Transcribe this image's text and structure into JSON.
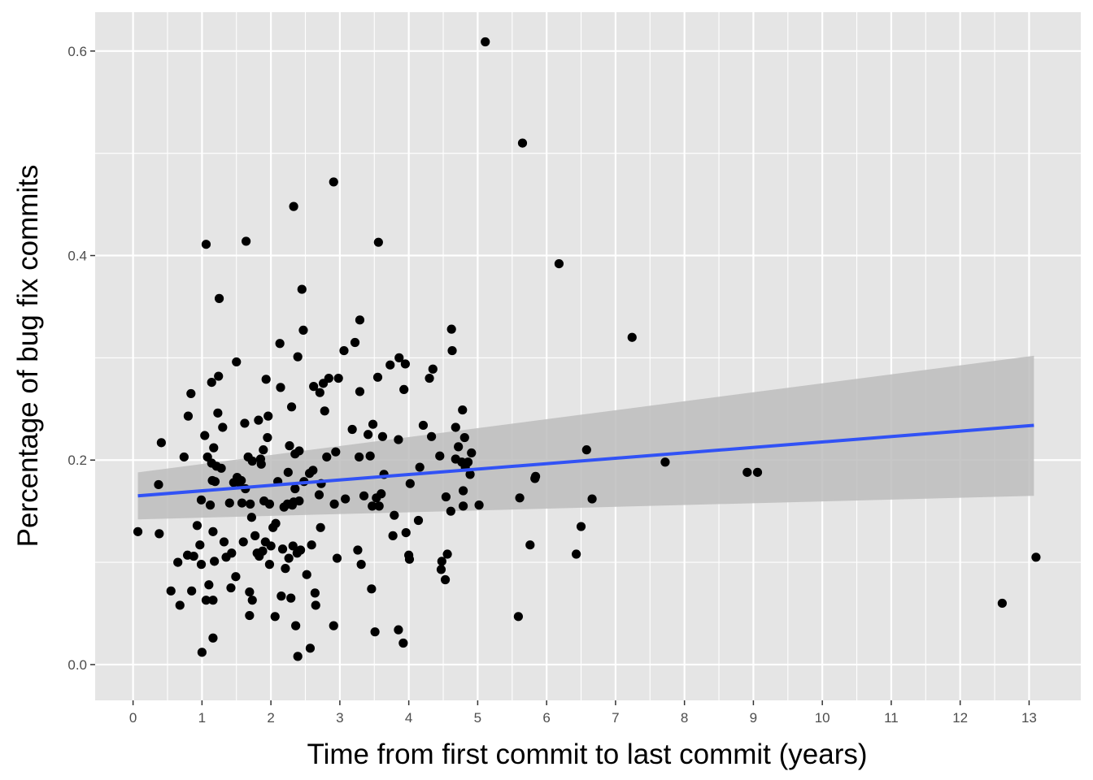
{
  "chart_data": {
    "type": "scatter",
    "title": "",
    "xlabel": "Time from first commit to last commit (years)",
    "ylabel": "Percentage of bug fix commits",
    "xlim": [
      -0.55,
      13.75
    ],
    "ylim": [
      -0.035,
      0.638
    ],
    "x_ticks": [
      0,
      1,
      2,
      3,
      4,
      5,
      6,
      7,
      8,
      9,
      10,
      11,
      12,
      13
    ],
    "x_tick_labels": [
      "0",
      "1",
      "2",
      "3",
      "4",
      "5",
      "6",
      "7",
      "8",
      "9",
      "10",
      "11",
      "12",
      "13"
    ],
    "y_ticks": [
      0.0,
      0.2,
      0.4,
      0.6
    ],
    "y_tick_labels": [
      "0.0",
      "0.2",
      "0.4",
      "0.6"
    ],
    "grid": true,
    "legend": "none",
    "colors": {
      "panel": "#e5e5e5",
      "grid": "#ffffff",
      "point": "#000000",
      "fit_line": "#3152f5",
      "confidence_band": "#bdbdbd",
      "tick_text": "#4d4d4d"
    },
    "fit": {
      "x_start": 0.07,
      "y_start": 0.165,
      "x_end": 13.07,
      "y_end": 0.234,
      "ci_start": [
        0.142,
        0.188
      ],
      "ci_end": [
        0.165,
        0.302
      ]
    },
    "points": [
      [
        0.07,
        0.13
      ],
      [
        0.37,
        0.176
      ],
      [
        0.38,
        0.128
      ],
      [
        0.41,
        0.217
      ],
      [
        0.55,
        0.072
      ],
      [
        0.65,
        0.1
      ],
      [
        0.68,
        0.058
      ],
      [
        0.74,
        0.203
      ],
      [
        0.79,
        0.107
      ],
      [
        0.8,
        0.243
      ],
      [
        0.84,
        0.265
      ],
      [
        0.85,
        0.072
      ],
      [
        0.88,
        0.106
      ],
      [
        0.93,
        0.136
      ],
      [
        0.97,
        0.117
      ],
      [
        0.99,
        0.098
      ],
      [
        0.99,
        0.161
      ],
      [
        1.0,
        0.012
      ],
      [
        1.04,
        0.224
      ],
      [
        1.06,
        0.411
      ],
      [
        1.06,
        0.063
      ],
      [
        1.08,
        0.203
      ],
      [
        1.1,
        0.078
      ],
      [
        1.12,
        0.156
      ],
      [
        1.14,
        0.276
      ],
      [
        1.14,
        0.197
      ],
      [
        1.15,
        0.18
      ],
      [
        1.16,
        0.063
      ],
      [
        1.16,
        0.13
      ],
      [
        1.16,
        0.026
      ],
      [
        1.17,
        0.212
      ],
      [
        1.18,
        0.101
      ],
      [
        1.19,
        0.179
      ],
      [
        1.21,
        0.194
      ],
      [
        1.23,
        0.246
      ],
      [
        1.24,
        0.282
      ],
      [
        1.25,
        0.358
      ],
      [
        1.28,
        0.192
      ],
      [
        1.3,
        0.232
      ],
      [
        1.32,
        0.12
      ],
      [
        1.35,
        0.105
      ],
      [
        1.4,
        0.158
      ],
      [
        1.42,
        0.075
      ],
      [
        1.43,
        0.109
      ],
      [
        1.46,
        0.178
      ],
      [
        1.49,
        0.086
      ],
      [
        1.5,
        0.296
      ],
      [
        1.51,
        0.183
      ],
      [
        1.54,
        0.178
      ],
      [
        1.57,
        0.18
      ],
      [
        1.58,
        0.158
      ],
      [
        1.6,
        0.12
      ],
      [
        1.62,
        0.236
      ],
      [
        1.63,
        0.172
      ],
      [
        1.64,
        0.414
      ],
      [
        1.67,
        0.203
      ],
      [
        1.69,
        0.071
      ],
      [
        1.69,
        0.048
      ],
      [
        1.7,
        0.157
      ],
      [
        1.72,
        0.144
      ],
      [
        1.73,
        0.063
      ],
      [
        1.73,
        0.199
      ],
      [
        1.77,
        0.126
      ],
      [
        1.8,
        0.109
      ],
      [
        1.82,
        0.239
      ],
      [
        1.83,
        0.106
      ],
      [
        1.85,
        0.201
      ],
      [
        1.86,
        0.196
      ],
      [
        1.88,
        0.111
      ],
      [
        1.89,
        0.21
      ],
      [
        1.9,
        0.16
      ],
      [
        1.92,
        0.12
      ],
      [
        1.93,
        0.279
      ],
      [
        1.95,
        0.222
      ],
      [
        1.96,
        0.243
      ],
      [
        1.98,
        0.157
      ],
      [
        1.98,
        0.098
      ],
      [
        2.0,
        0.116
      ],
      [
        2.03,
        0.134
      ],
      [
        2.06,
        0.047
      ],
      [
        2.07,
        0.138
      ],
      [
        2.1,
        0.179
      ],
      [
        2.13,
        0.314
      ],
      [
        2.14,
        0.271
      ],
      [
        2.15,
        0.067
      ],
      [
        2.17,
        0.113
      ],
      [
        2.19,
        0.154
      ],
      [
        2.21,
        0.094
      ],
      [
        2.24,
        0.157
      ],
      [
        2.25,
        0.188
      ],
      [
        2.26,
        0.104
      ],
      [
        2.27,
        0.214
      ],
      [
        2.29,
        0.065
      ],
      [
        2.3,
        0.252
      ],
      [
        2.31,
        0.156
      ],
      [
        2.32,
        0.116
      ],
      [
        2.33,
        0.448
      ],
      [
        2.33,
        0.159
      ],
      [
        2.35,
        0.206
      ],
      [
        2.35,
        0.172
      ],
      [
        2.36,
        0.038
      ],
      [
        2.38,
        0.109
      ],
      [
        2.39,
        0.301
      ],
      [
        2.39,
        0.008
      ],
      [
        2.41,
        0.209
      ],
      [
        2.41,
        0.16
      ],
      [
        2.43,
        0.112
      ],
      [
        2.45,
        0.367
      ],
      [
        2.47,
        0.327
      ],
      [
        2.48,
        0.179
      ],
      [
        2.52,
        0.088
      ],
      [
        2.56,
        0.187
      ],
      [
        2.57,
        0.016
      ],
      [
        2.59,
        0.117
      ],
      [
        2.61,
        0.19
      ],
      [
        2.62,
        0.272
      ],
      [
        2.64,
        0.07
      ],
      [
        2.65,
        0.058
      ],
      [
        2.7,
        0.166
      ],
      [
        2.71,
        0.266
      ],
      [
        2.72,
        0.134
      ],
      [
        2.73,
        0.177
      ],
      [
        2.76,
        0.275
      ],
      [
        2.78,
        0.248
      ],
      [
        2.81,
        0.203
      ],
      [
        2.84,
        0.28
      ],
      [
        2.91,
        0.472
      ],
      [
        2.91,
        0.038
      ],
      [
        2.92,
        0.157
      ],
      [
        2.94,
        0.208
      ],
      [
        2.96,
        0.104
      ],
      [
        2.98,
        0.28
      ],
      [
        3.06,
        0.307
      ],
      [
        3.08,
        0.162
      ],
      [
        3.18,
        0.23
      ],
      [
        3.22,
        0.315
      ],
      [
        3.26,
        0.112
      ],
      [
        3.28,
        0.203
      ],
      [
        3.29,
        0.337
      ],
      [
        3.29,
        0.267
      ],
      [
        3.31,
        0.098
      ],
      [
        3.35,
        0.165
      ],
      [
        3.41,
        0.225
      ],
      [
        3.44,
        0.204
      ],
      [
        3.46,
        0.074
      ],
      [
        3.47,
        0.155
      ],
      [
        3.48,
        0.235
      ],
      [
        3.51,
        0.032
      ],
      [
        3.53,
        0.163
      ],
      [
        3.55,
        0.281
      ],
      [
        3.56,
        0.413
      ],
      [
        3.57,
        0.155
      ],
      [
        3.6,
        0.167
      ],
      [
        3.62,
        0.223
      ],
      [
        3.64,
        0.186
      ],
      [
        3.73,
        0.293
      ],
      [
        3.77,
        0.126
      ],
      [
        3.79,
        0.146
      ],
      [
        3.85,
        0.22
      ],
      [
        3.85,
        0.034
      ],
      [
        3.86,
        0.3
      ],
      [
        3.92,
        0.021
      ],
      [
        3.93,
        0.269
      ],
      [
        3.95,
        0.294
      ],
      [
        3.96,
        0.129
      ],
      [
        4.0,
        0.107
      ],
      [
        4.01,
        0.103
      ],
      [
        4.02,
        0.177
      ],
      [
        4.14,
        0.141
      ],
      [
        4.16,
        0.193
      ],
      [
        4.21,
        0.234
      ],
      [
        4.3,
        0.28
      ],
      [
        4.33,
        0.223
      ],
      [
        4.35,
        0.289
      ],
      [
        4.45,
        0.204
      ],
      [
        4.47,
        0.093
      ],
      [
        4.48,
        0.101
      ],
      [
        4.53,
        0.083
      ],
      [
        4.54,
        0.164
      ],
      [
        4.56,
        0.108
      ],
      [
        4.61,
        0.15
      ],
      [
        4.62,
        0.328
      ],
      [
        4.63,
        0.307
      ],
      [
        4.68,
        0.232
      ],
      [
        4.68,
        0.201
      ],
      [
        4.72,
        0.213
      ],
      [
        4.77,
        0.198
      ],
      [
        4.78,
        0.249
      ],
      [
        4.79,
        0.17
      ],
      [
        4.79,
        0.155
      ],
      [
        4.81,
        0.222
      ],
      [
        4.82,
        0.193
      ],
      [
        4.86,
        0.198
      ],
      [
        4.89,
        0.186
      ],
      [
        4.91,
        0.207
      ],
      [
        5.02,
        0.156
      ],
      [
        5.11,
        0.609
      ],
      [
        5.59,
        0.047
      ],
      [
        5.61,
        0.163
      ],
      [
        5.65,
        0.51
      ],
      [
        5.76,
        0.117
      ],
      [
        5.83,
        0.182
      ],
      [
        5.84,
        0.184
      ],
      [
        6.18,
        0.392
      ],
      [
        6.43,
        0.108
      ],
      [
        6.5,
        0.135
      ],
      [
        6.58,
        0.21
      ],
      [
        6.66,
        0.162
      ],
      [
        7.24,
        0.32
      ],
      [
        7.72,
        0.198
      ],
      [
        8.91,
        0.188
      ],
      [
        9.06,
        0.188
      ],
      [
        12.61,
        0.06
      ],
      [
        13.1,
        0.105
      ]
    ]
  }
}
